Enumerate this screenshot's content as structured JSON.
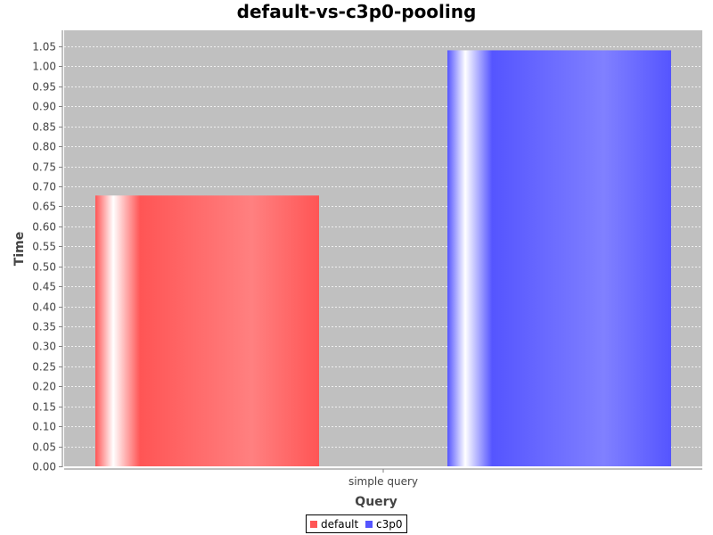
{
  "chart_data": {
    "type": "bar",
    "title": "default-vs-c3p0-pooling",
    "xlabel": "Query",
    "ylabel": "Time",
    "categories": [
      "simple query"
    ],
    "series": [
      {
        "name": "default",
        "values": [
          0.677
        ],
        "color": "#ff5555"
      },
      {
        "name": "c3p0",
        "values": [
          1.04
        ],
        "color": "#5555ff"
      }
    ],
    "ylim": [
      0,
      1.09
    ],
    "yticks": [
      "0.00",
      "0.05",
      "0.10",
      "0.15",
      "0.20",
      "0.25",
      "0.30",
      "0.35",
      "0.40",
      "0.45",
      "0.50",
      "0.55",
      "0.60",
      "0.65",
      "0.70",
      "0.75",
      "0.80",
      "0.85",
      "0.90",
      "0.95",
      "1.00",
      "1.05"
    ],
    "grid": true,
    "legend_position": "bottom-center",
    "plot_background": "#c0c0c0"
  }
}
